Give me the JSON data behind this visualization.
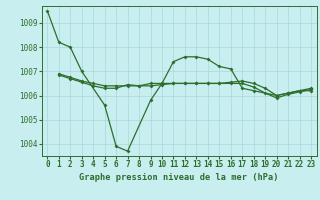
{
  "title": "Graphe pression niveau de la mer (hPa)",
  "background_color": "#c8eef0",
  "grid_color": "#a8d8dc",
  "line_color": "#2d6e2d",
  "xlim": [
    -0.5,
    23.5
  ],
  "ylim": [
    1003.5,
    1009.7
  ],
  "yticks": [
    1004,
    1005,
    1006,
    1007,
    1008,
    1009
  ],
  "xticks": [
    0,
    1,
    2,
    3,
    4,
    5,
    6,
    7,
    8,
    9,
    10,
    11,
    12,
    13,
    14,
    15,
    16,
    17,
    18,
    19,
    20,
    21,
    22,
    23
  ],
  "series1_x": [
    0,
    1,
    2,
    3,
    5,
    6,
    7,
    9,
    10,
    11,
    12,
    13,
    14,
    15,
    16,
    17,
    18,
    20,
    21,
    22,
    23
  ],
  "series1_y": [
    1009.5,
    1008.2,
    1008.0,
    1007.0,
    1005.6,
    1003.9,
    1003.7,
    1005.8,
    1006.5,
    1007.4,
    1007.6,
    1007.6,
    1007.5,
    1007.2,
    1007.1,
    1006.3,
    1006.2,
    1006.0,
    1006.1,
    1006.2,
    1006.2
  ],
  "series2_x": [
    1,
    2,
    3,
    4,
    5,
    6,
    7,
    8,
    9,
    10,
    11,
    12,
    13,
    14,
    15,
    16,
    17,
    18,
    19,
    20,
    21,
    22,
    23
  ],
  "series2_y": [
    1006.9,
    1006.75,
    1006.6,
    1006.5,
    1006.4,
    1006.4,
    1006.4,
    1006.4,
    1006.5,
    1006.5,
    1006.5,
    1006.5,
    1006.5,
    1006.5,
    1006.5,
    1006.55,
    1006.6,
    1006.5,
    1006.3,
    1006.0,
    1006.1,
    1006.2,
    1006.3
  ],
  "series3_x": [
    1,
    2,
    3,
    4,
    5,
    6,
    7,
    8,
    9,
    10,
    11,
    12,
    13,
    14,
    15,
    16,
    17,
    18,
    19,
    20,
    21,
    22,
    23
  ],
  "series3_y": [
    1006.85,
    1006.7,
    1006.55,
    1006.4,
    1006.3,
    1006.3,
    1006.45,
    1006.4,
    1006.4,
    1006.45,
    1006.5,
    1006.5,
    1006.5,
    1006.5,
    1006.5,
    1006.5,
    1006.5,
    1006.35,
    1006.1,
    1005.9,
    1006.05,
    1006.15,
    1006.25
  ],
  "tick_fontsize": 5.5,
  "label_fontsize": 6.2,
  "marker_size": 2.0,
  "linewidth": 0.9
}
